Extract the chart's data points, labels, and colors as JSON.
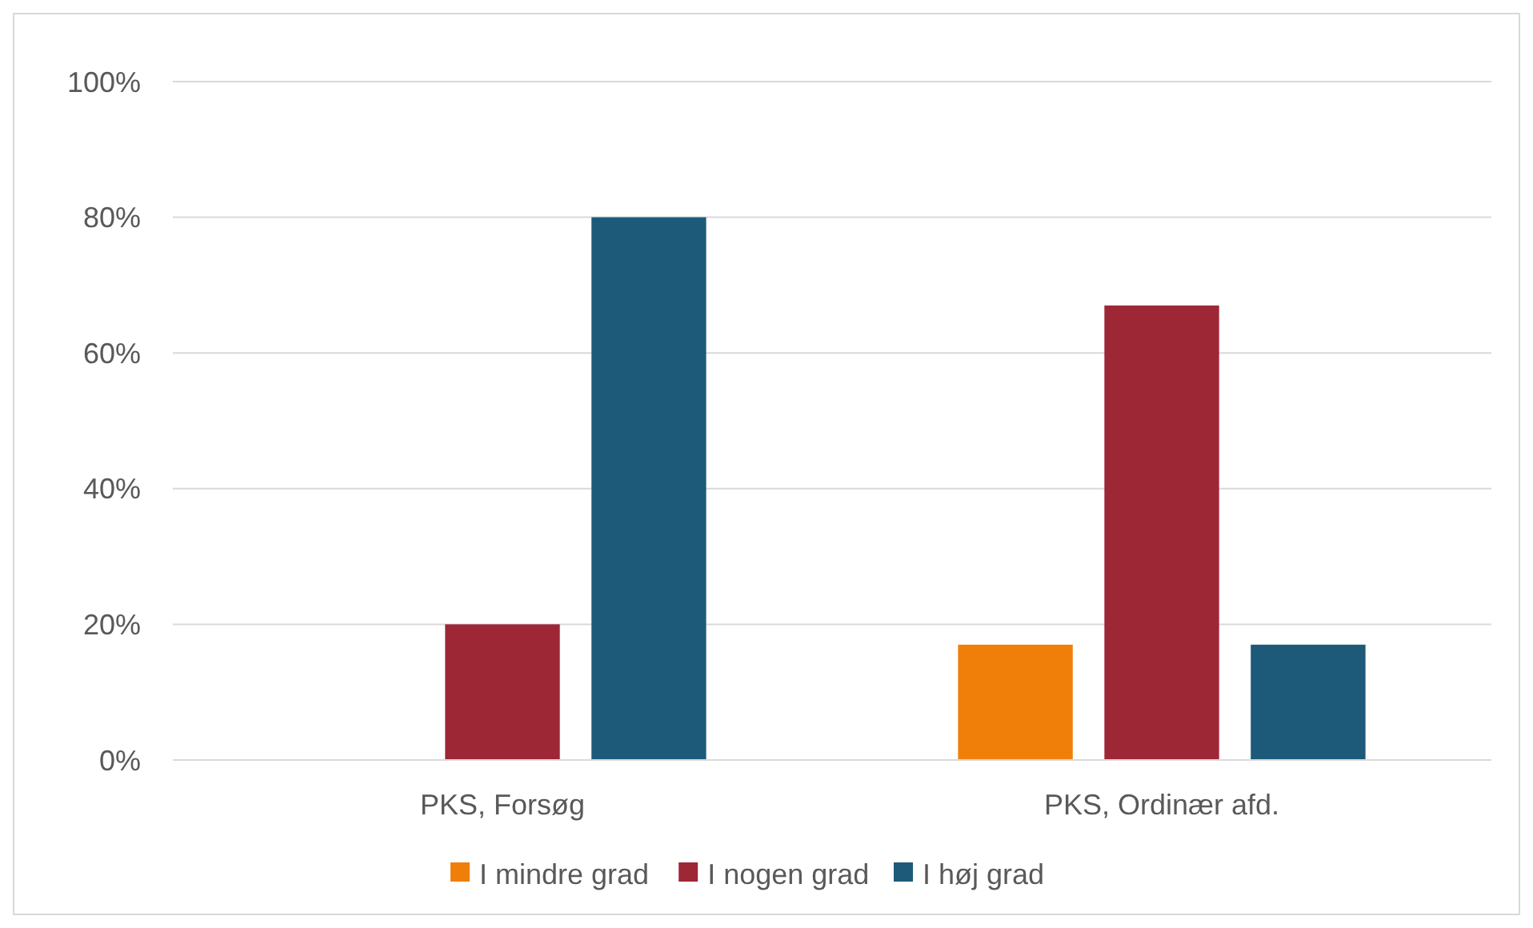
{
  "chart_data": {
    "type": "bar",
    "categories": [
      "PKS, Forsøg",
      "PKS, Ordinær afd."
    ],
    "series": [
      {
        "name": "I mindre grad",
        "color": "#f07f09",
        "values": [
          0,
          17
        ]
      },
      {
        "name": "I nogen grad",
        "color": "#9e2736",
        "values": [
          20,
          67
        ]
      },
      {
        "name": "I høj grad",
        "color": "#1d5a7a",
        "values": [
          80,
          17
        ]
      }
    ],
    "ylim": [
      0,
      100
    ],
    "yticks": [
      {
        "value": 0,
        "label": "0%"
      },
      {
        "value": 20,
        "label": "20%"
      },
      {
        "value": 40,
        "label": "40%"
      },
      {
        "value": 60,
        "label": "60%"
      },
      {
        "value": 80,
        "label": "80%"
      },
      {
        "value": 100,
        "label": "100%"
      }
    ],
    "grid": "y",
    "legend": "bottom"
  }
}
